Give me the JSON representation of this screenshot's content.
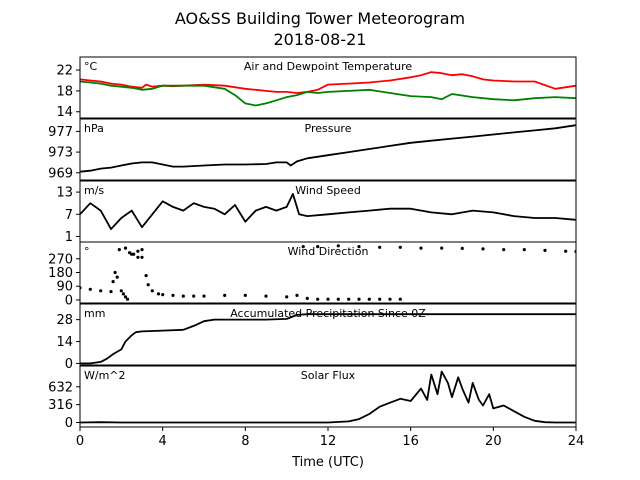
{
  "chart_data": {
    "type": "line",
    "title": "AO&SS Building Tower Meteorogram",
    "subtitle": "2018-08-21",
    "xlabel": "Time (UTC)",
    "xlim": [
      0,
      24
    ],
    "xticks": [
      "0",
      "4",
      "8",
      "12",
      "16",
      "20",
      "24"
    ],
    "panels": [
      {
        "title": "Air and Dewpoint Temperature",
        "unit": "°C",
        "ylim": [
          12.8,
          24.5
        ],
        "yticks": [
          14,
          18,
          22
        ],
        "series": [
          {
            "color": "#ff0000",
            "x": [
              0,
              0.5,
              1,
              1.5,
              2,
              2.5,
              3,
              3.2,
              3.5,
              4,
              4.5,
              5,
              6,
              7,
              8,
              8.5,
              9,
              9.5,
              10,
              10.5,
              11,
              11.5,
              12,
              13,
              14,
              15,
              16,
              16.5,
              17,
              17.5,
              18,
              18.5,
              19,
              19.5,
              20,
              21,
              22,
              23,
              24
            ],
            "y": [
              20.2,
              20.0,
              19.8,
              19.4,
              19.2,
              18.8,
              18.6,
              19.2,
              18.8,
              19.0,
              18.9,
              19.0,
              19.2,
              19.0,
              18.4,
              18.2,
              18.0,
              17.8,
              17.8,
              17.6,
              17.8,
              18.2,
              19.2,
              19.4,
              19.6,
              20.0,
              20.6,
              21.0,
              21.6,
              21.4,
              21.0,
              21.2,
              20.8,
              20.2,
              20.0,
              19.8,
              19.8,
              18.4,
              19.0
            ]
          },
          {
            "color": "#008000",
            "x": [
              0,
              0.5,
              1,
              1.5,
              2,
              2.5,
              3,
              3.5,
              4,
              4.5,
              5,
              6,
              7,
              7.5,
              8,
              8.5,
              9,
              9.5,
              10,
              10.5,
              11,
              11.5,
              12,
              13,
              14,
              15,
              16,
              17,
              17.5,
              18,
              19,
              20,
              21,
              22,
              23,
              24
            ],
            "y": [
              19.8,
              19.6,
              19.4,
              19.0,
              18.8,
              18.6,
              18.2,
              18.4,
              19.0,
              19.0,
              19.0,
              19.0,
              18.4,
              17.2,
              15.6,
              15.2,
              15.6,
              16.2,
              16.8,
              17.2,
              17.8,
              17.6,
              17.8,
              18.0,
              18.2,
              17.6,
              17.0,
              16.8,
              16.4,
              17.4,
              16.8,
              16.4,
              16.2,
              16.6,
              16.8,
              16.6
            ]
          }
        ]
      },
      {
        "title": "Pressure",
        "unit": "hPa",
        "ylim": [
          967.6,
          979.4
        ],
        "yticks": [
          969,
          973,
          977
        ],
        "series": [
          {
            "color": "#000000",
            "x": [
              0,
              0.5,
              1,
              1.5,
              2,
              2.5,
              3,
              3.5,
              4,
              4.5,
              5,
              6,
              7,
              8,
              9,
              9.5,
              10,
              10.2,
              10.5,
              11,
              12,
              13,
              14,
              15,
              16,
              17,
              18,
              19,
              20,
              21,
              22,
              23,
              24
            ],
            "y": [
              969.2,
              969.4,
              969.8,
              970.0,
              970.4,
              970.8,
              971.0,
              971.0,
              970.6,
              970.2,
              970.2,
              970.4,
              970.6,
              970.6,
              970.7,
              971.0,
              971.0,
              970.4,
              971.2,
              971.8,
              972.4,
              973.0,
              973.6,
              974.2,
              974.8,
              975.2,
              975.6,
              976.0,
              976.4,
              976.8,
              977.2,
              977.6,
              978.2
            ]
          }
        ]
      },
      {
        "title": "Wind Speed",
        "unit": "m/s",
        "ylim": [
          -0.5,
          16.0
        ],
        "yticks": [
          1,
          7,
          13
        ],
        "series": [
          {
            "color": "#000000",
            "x": [
              0,
              0.5,
              1,
              1.5,
              2,
              2.5,
              3,
              3.5,
              4,
              4.5,
              5,
              5.5,
              6,
              6.5,
              7,
              7.5,
              8,
              8.5,
              9,
              9.5,
              10,
              10.3,
              10.6,
              11,
              12,
              13,
              14,
              15,
              16,
              17,
              18,
              19,
              20,
              21,
              22,
              23,
              24
            ],
            "y": [
              7.0,
              10.0,
              8.0,
              3.0,
              6.0,
              8.0,
              3.5,
              7.0,
              10.5,
              9.0,
              8.0,
              10.0,
              9.0,
              8.5,
              7.0,
              9.5,
              5.0,
              8.0,
              9.0,
              8.0,
              9.0,
              12.5,
              7.0,
              6.5,
              7.0,
              7.5,
              8.0,
              8.5,
              8.5,
              7.5,
              7.0,
              8.0,
              7.5,
              6.5,
              6.0,
              6.0,
              5.5
            ]
          }
        ]
      },
      {
        "title": "Wind Direction",
        "unit": "°",
        "ylim": [
          -20,
          380
        ],
        "yticks": [
          0,
          90,
          180,
          270
        ],
        "series": [
          {
            "color": "#000000",
            "x": [
              0,
              0.5,
              1,
              1.5,
              1.6,
              1.7,
              1.8,
              2.0,
              2.1,
              2.2,
              2.3,
              2.5,
              2.8,
              3.0,
              3.2,
              3.3,
              3.5,
              3.8,
              4.0,
              4.5,
              5.0,
              5.5,
              6.0,
              7.0,
              8.0,
              9.0,
              10.0,
              10.5,
              11.0,
              11.5,
              12.0,
              12.5,
              13.0,
              13.5,
              14.0,
              14.5,
              15.0,
              15.5,
              10.8,
              11.5,
              12.5,
              13.5,
              14.5,
              15.5,
              16.5,
              17.5,
              18.5,
              19.5,
              20.5,
              21.5,
              22.5,
              23.5,
              24.0,
              1.9,
              2.2,
              2.4,
              2.6,
              2.8,
              3.0
            ],
            "y": [
              80,
              70,
              60,
              55,
              120,
              180,
              150,
              60,
              40,
              20,
              5,
              300,
              320,
              280,
              160,
              100,
              60,
              40,
              35,
              30,
              25,
              25,
              25,
              30,
              30,
              25,
              20,
              30,
              10,
              5,
              5,
              5,
              5,
              5,
              5,
              5,
              5,
              5,
              350,
              350,
              355,
              350,
              345,
              345,
              340,
              340,
              338,
              335,
              330,
              330,
              325,
              320,
              318,
              330,
              340,
              310,
              300,
              280,
              330
            ]
          }
        ]
      },
      {
        "title": "Accumulated Precipitation Since 0Z",
        "unit": "mm",
        "ylim": [
          -1.0,
          38.0
        ],
        "yticks": [
          0,
          14,
          28
        ],
        "series": [
          {
            "color": "#000000",
            "x": [
              0,
              0.5,
              1.0,
              1.3,
              1.6,
              2.0,
              2.2,
              2.5,
              2.7,
              3.0,
              4.0,
              5.0,
              5.5,
              6.0,
              6.5,
              7.0,
              8.0,
              9.0,
              10.0,
              10.5,
              11.0,
              12.0,
              24.0
            ],
            "y": [
              0,
              0,
              1.0,
              3.0,
              6.0,
              9.0,
              14.0,
              18.0,
              20.0,
              20.5,
              21.0,
              21.5,
              24.0,
              27.0,
              28.0,
              28.0,
              28.0,
              28.0,
              28.5,
              31.0,
              31.5,
              31.5,
              31.5
            ]
          }
        ]
      },
      {
        "title": "Solar Flux",
        "unit": "W/m^2",
        "ylim": [
          -80,
          1000
        ],
        "yticks": [
          0,
          316,
          632
        ],
        "series": [
          {
            "color": "#000000",
            "x": [
              0,
              1,
              2,
              6,
              10,
              12,
              13,
              13.5,
              14,
              14.5,
              15.0,
              15.5,
              16.0,
              16.5,
              16.8,
              17.0,
              17.3,
              17.5,
              17.8,
              18.0,
              18.3,
              18.5,
              18.8,
              19.0,
              19.3,
              19.5,
              19.8,
              20.0,
              20.5,
              21.0,
              21.5,
              22.0,
              22.5,
              23,
              24
            ],
            "y": [
              0,
              5,
              0,
              0,
              0,
              0,
              20,
              60,
              150,
              280,
              350,
              420,
              380,
              600,
              400,
              850,
              500,
              900,
              700,
              450,
              800,
              600,
              350,
              700,
              400,
              300,
              500,
              250,
              300,
              200,
              100,
              30,
              5,
              0,
              0
            ]
          }
        ]
      }
    ]
  }
}
